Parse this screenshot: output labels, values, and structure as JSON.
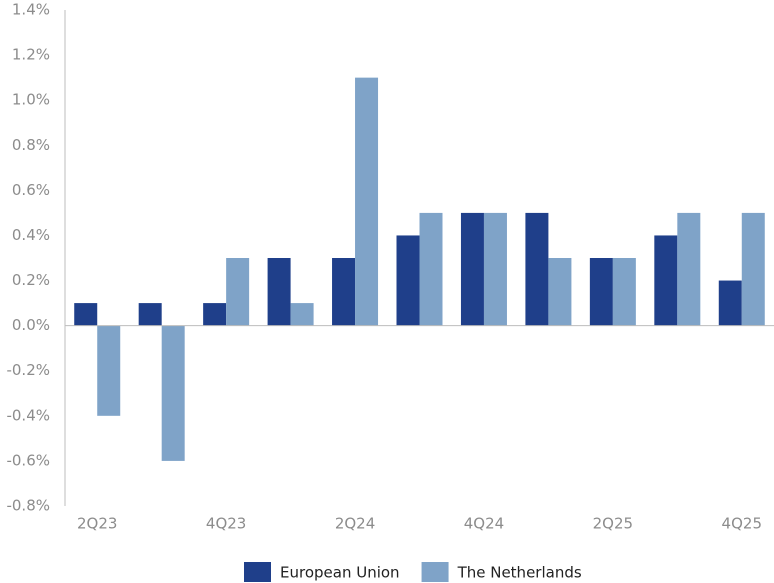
{
  "chart_data": {
    "type": "bar",
    "categories": [
      "2Q23",
      null,
      "4Q23",
      null,
      "2Q24",
      null,
      "4Q24",
      null,
      "2Q25",
      null,
      "4Q25"
    ],
    "series": [
      {
        "name": "European Union",
        "color": "#1f3f8a",
        "values": [
          0.1,
          0.1,
          0.1,
          0.3,
          0.3,
          0.4,
          0.5,
          0.5,
          0.3,
          0.4,
          0.2
        ]
      },
      {
        "name": "The Netherlands",
        "color": "#7fa3c8",
        "values": [
          -0.4,
          -0.6,
          0.3,
          0.1,
          1.1,
          0.5,
          0.5,
          0.3,
          0.3,
          0.5,
          0.5
        ]
      }
    ],
    "ylim": [
      -0.8,
      1.4
    ],
    "yticks": [
      {
        "value": -0.8,
        "label": "-0.8%"
      },
      {
        "value": -0.6,
        "label": "-0.6%"
      },
      {
        "value": -0.4,
        "label": "-0.4%"
      },
      {
        "value": -0.2,
        "label": "-0.2%"
      },
      {
        "value": 0,
        "label": "0.0%"
      },
      {
        "value": 0.2,
        "label": "0.2%"
      },
      {
        "value": 0.4,
        "label": "0.4%"
      },
      {
        "value": 0.6,
        "label": "0.6%"
      },
      {
        "value": 0.8,
        "label": "0.8%"
      },
      {
        "value": 1.0,
        "label": "1.0%"
      },
      {
        "value": 1.2,
        "label": "1.2%"
      },
      {
        "value": 1.4,
        "label": "1.4%"
      }
    ],
    "grid": false,
    "legend": "bottom"
  }
}
